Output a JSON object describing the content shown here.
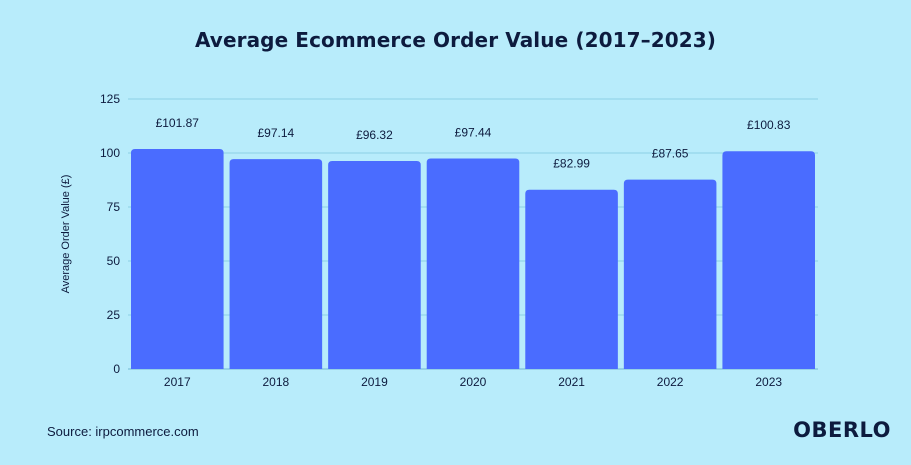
{
  "chart_data": {
    "type": "bar",
    "title": "Average Ecommerce Order Value (2017–2023)",
    "xlabel": "",
    "ylabel": "Average Order Value (£)",
    "categories": [
      "2017",
      "2018",
      "2019",
      "2020",
      "2021",
      "2022",
      "2023"
    ],
    "values": [
      101.87,
      97.14,
      96.32,
      97.44,
      82.99,
      87.65,
      100.83
    ],
    "data_labels": [
      "£101.87",
      "£97.14",
      "£96.32",
      "£97.44",
      "£82.99",
      "£87.65",
      "£100.83"
    ],
    "ylim": [
      0,
      125
    ],
    "yticks": [
      0,
      25,
      50,
      75,
      100,
      125
    ],
    "grid": true,
    "bar_color": "#4a6cff",
    "gridline_color": "#8ccfe6"
  },
  "footer": {
    "source": "Source: irpcommerce.com",
    "brand": "OBERLO"
  }
}
